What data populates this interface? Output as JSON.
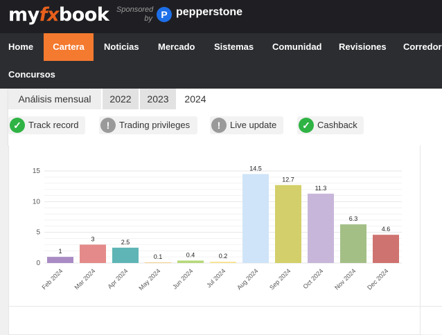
{
  "brand": {
    "logo_prefix": "my",
    "logo_fx": "fx",
    "logo_suffix": "book",
    "sponsored_line1": "Sponsored",
    "sponsored_line2": "by",
    "sponsor_icon": "P",
    "sponsor_name": "pepperstone",
    "accent": "#f47a30",
    "sponsor_color": "#1d6fe8"
  },
  "nav": {
    "items": [
      "Home",
      "Cartera",
      "Noticias",
      "Mercado",
      "Sistemas",
      "Comunidad",
      "Revisiones",
      "Corredores",
      "Concursos"
    ],
    "active": "Cartera"
  },
  "tabs": {
    "title": "Análisis mensual",
    "years": [
      "2022",
      "2023",
      "2024"
    ],
    "active": "2024"
  },
  "badges": [
    {
      "label": "Track record",
      "status": "ok",
      "icon": "check-icon",
      "symbol": "✓"
    },
    {
      "label": "Trading privileges",
      "status": "warn",
      "icon": "exclamation-icon",
      "symbol": "!"
    },
    {
      "label": "Live update",
      "status": "warn",
      "icon": "exclamation-icon",
      "symbol": "!"
    },
    {
      "label": "Cashback",
      "status": "ok",
      "icon": "check-icon",
      "symbol": "✓"
    }
  ],
  "chart_data": {
    "type": "bar",
    "categories": [
      "Feb 2024",
      "Mar 2024",
      "Apr 2024",
      "May 2024",
      "Jun 2024",
      "Jul 2024",
      "Aug 2024",
      "Sep 2024",
      "Oct 2024",
      "Nov 2024",
      "Dec 2024"
    ],
    "values": [
      1,
      3,
      2.5,
      0.1,
      0.4,
      0.2,
      14.5,
      12.7,
      11.3,
      6.3,
      4.6
    ],
    "value_labels": [
      "1",
      "3",
      "2.5",
      "0.1",
      "0.4",
      "0.2",
      "14.5",
      "12.7",
      "11.3",
      "6.3",
      "4.6"
    ],
    "colors": [
      "#a98bc4",
      "#e58a8a",
      "#5fb5b5",
      "#f5cf8a",
      "#b5d97a",
      "#f7e18a",
      "#cfe4f8",
      "#d3cf6a",
      "#c8b6da",
      "#a3bf86",
      "#cf7370"
    ],
    "yticks": [
      0,
      5,
      10,
      15
    ],
    "ylim": [
      0,
      15.5
    ],
    "grid": true,
    "title": "",
    "xlabel": "",
    "ylabel": ""
  }
}
